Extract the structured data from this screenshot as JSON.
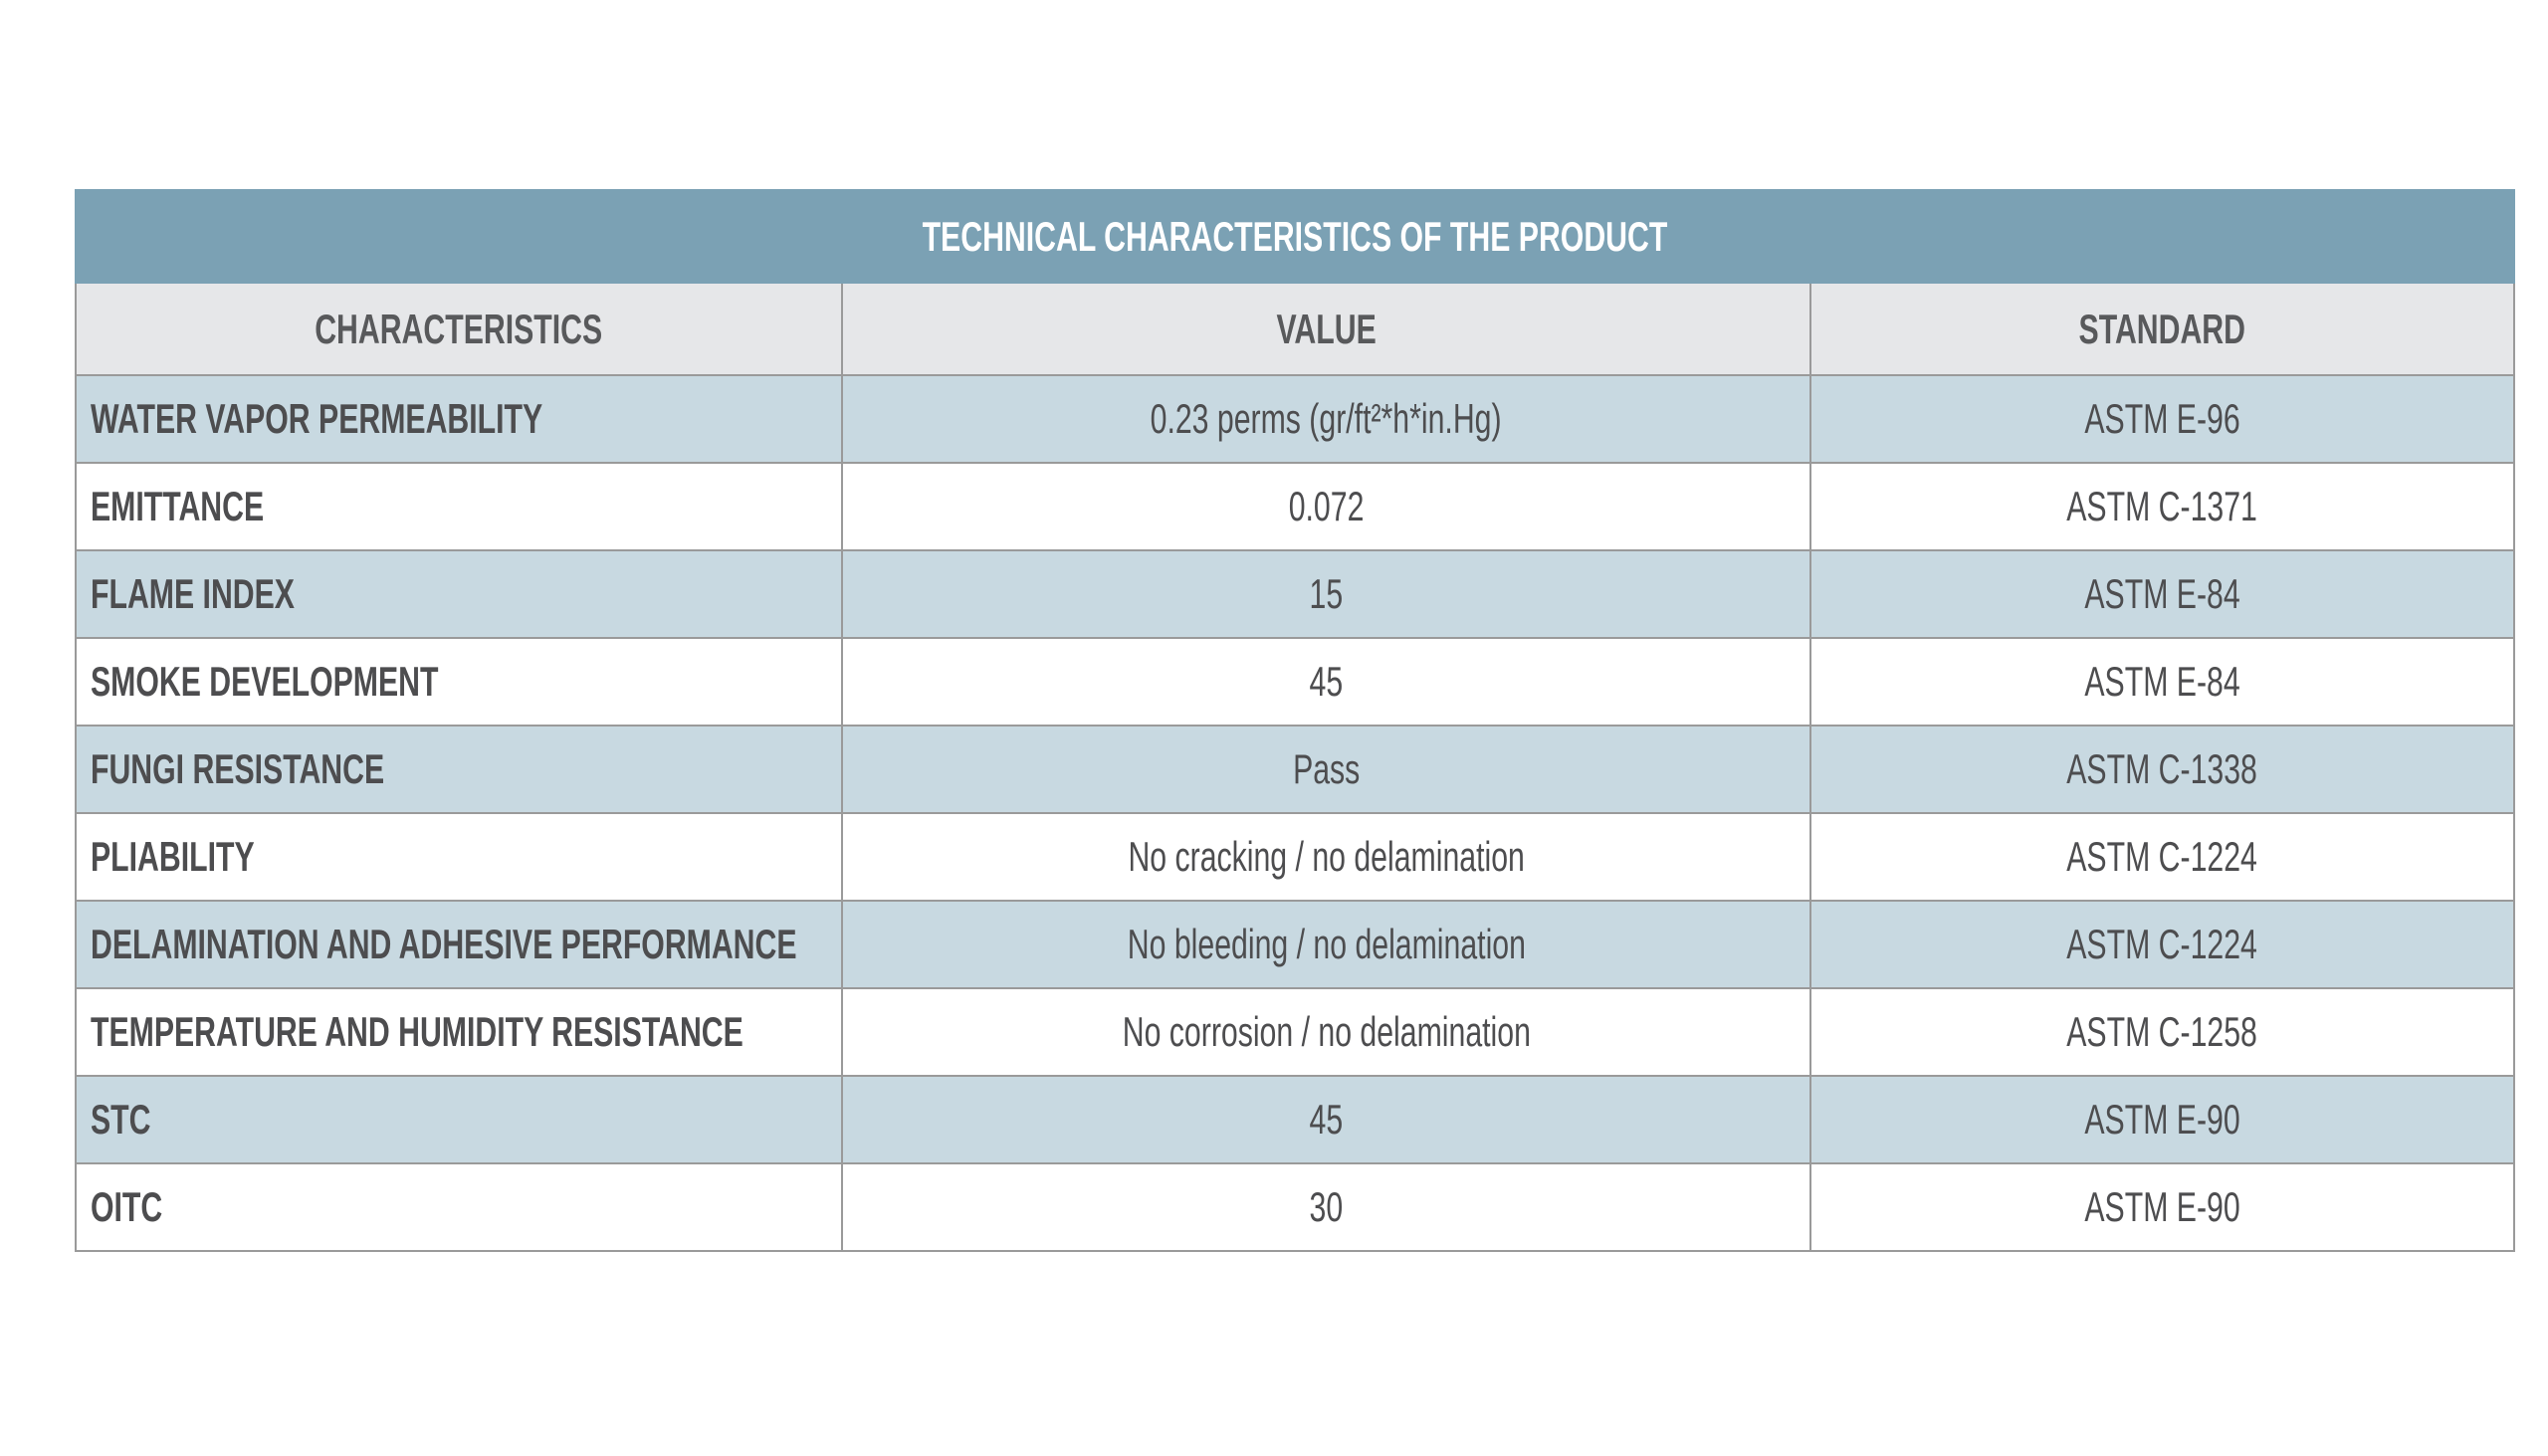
{
  "table": {
    "title": "TECHNICAL CHARACTERISTICS OF THE PRODUCT",
    "columns": [
      "CHARACTERISTICS",
      "VALUE",
      "STANDARD"
    ],
    "rows": [
      [
        "WATER VAPOR PERMEABILITY",
        "0.23 perms (gr/ft²*h*in.Hg)",
        "ASTM E-96"
      ],
      [
        "EMITTANCE",
        "0.072",
        "ASTM C-1371"
      ],
      [
        "FLAME INDEX",
        "15",
        "ASTM E-84"
      ],
      [
        "SMOKE DEVELOPMENT",
        "45",
        "ASTM E-84"
      ],
      [
        "FUNGI RESISTANCE",
        "Pass",
        "ASTM C-1338"
      ],
      [
        "PLIABILITY",
        "No cracking / no delamination",
        "ASTM C-1224"
      ],
      [
        "DELAMINATION AND ADHESIVE PERFORMANCE",
        "No bleeding / no delamination",
        "ASTM C-1224"
      ],
      [
        "TEMPERATURE AND HUMIDITY RESISTANCE",
        "No corrosion / no delamination",
        "ASTM C-1258"
      ],
      [
        "STC",
        "45",
        "ASTM E-90"
      ],
      [
        "OITC",
        "30",
        "ASTM E-90"
      ]
    ]
  }
}
